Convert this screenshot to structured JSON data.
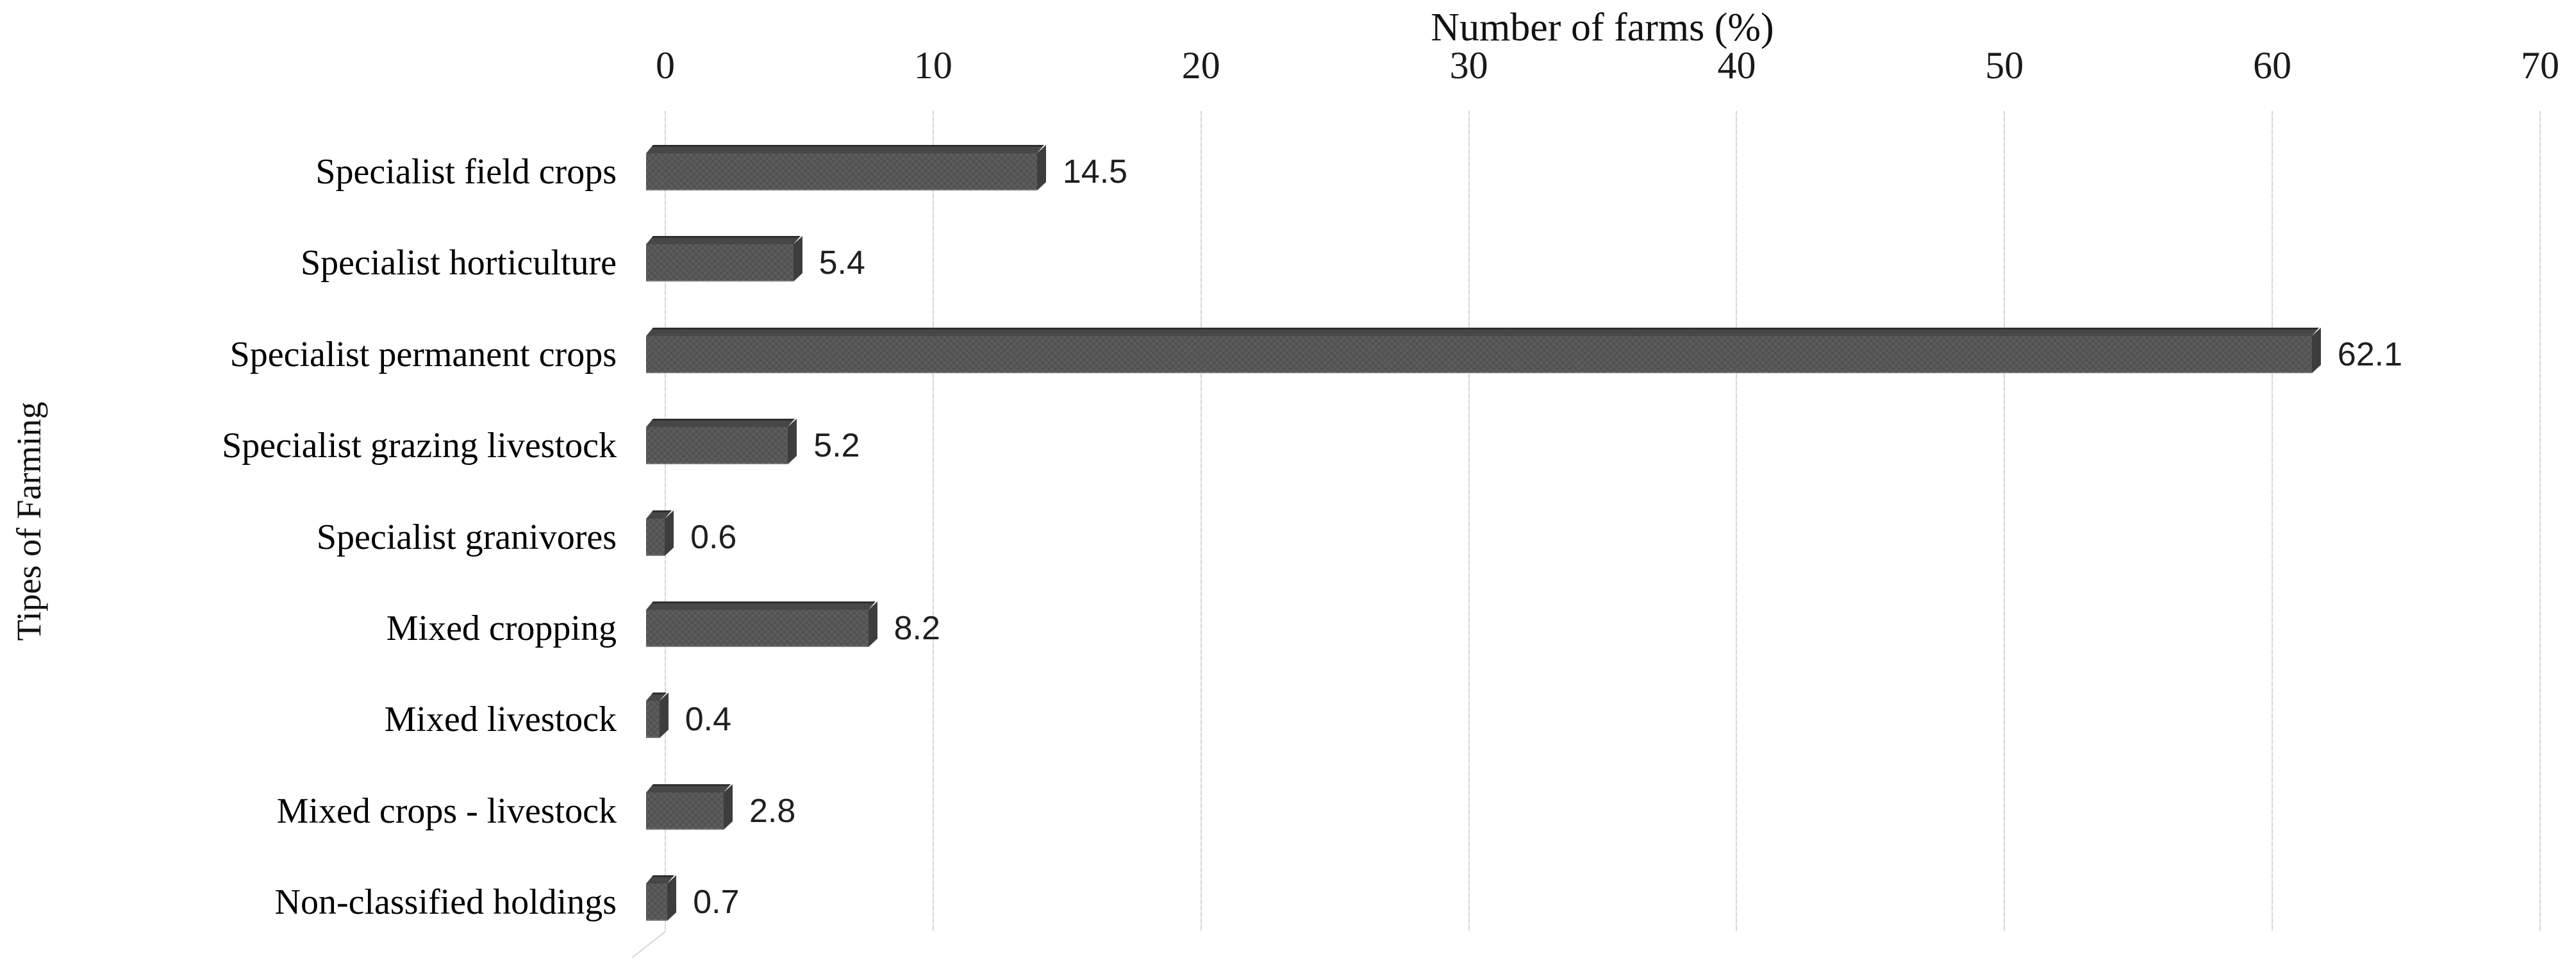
{
  "chart_data": {
    "type": "bar",
    "orientation": "horizontal",
    "xlabel": "Number of farms (%)",
    "ylabel": "Tipes of Farming",
    "categories": [
      "Specialist field crops",
      "Specialist horticulture",
      "Specialist permanent crops",
      "Specialist grazing livestock",
      "Specialist granivores",
      "Mixed cropping",
      "Mixed livestock",
      "Mixed crops - livestock",
      "Non-classified holdings"
    ],
    "values": [
      14.5,
      5.4,
      62.1,
      5.2,
      0.6,
      8.2,
      0.4,
      2.8,
      0.7
    ],
    "data_labels": [
      "14.5",
      "5.4",
      "62.1",
      "5.2",
      "0.6",
      "8.2",
      "0.4",
      "2.8",
      "0.7"
    ],
    "xlim": [
      0,
      70
    ],
    "xticks": [
      0,
      10,
      20,
      30,
      40,
      50,
      60,
      70
    ],
    "grid": true,
    "legend": false,
    "colors": {
      "bar_front": "#575757",
      "bar_top": "#474747",
      "bar_side": "#3d3d3d",
      "gridline": "#d6d6d6",
      "text": "#111111",
      "background": "#ffffff"
    }
  }
}
